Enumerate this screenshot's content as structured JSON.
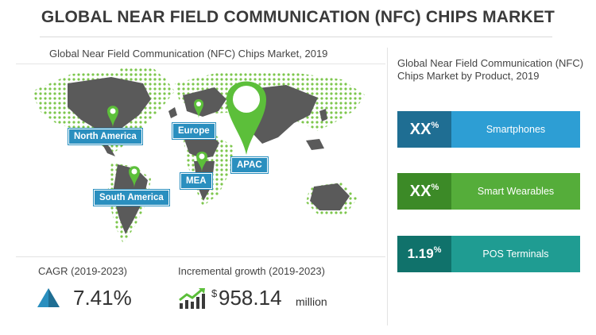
{
  "header": {
    "title": "GLOBAL NEAR FIELD COMMUNICATION (NFC) CHIPS MARKET"
  },
  "map": {
    "title": "Global Near Field Communication (NFC) Chips Market, 2019",
    "regions": {
      "north_america": "North America",
      "europe": "Europe",
      "apac": "APAC",
      "mea": "MEA",
      "south_america": "South America"
    },
    "colors": {
      "land": "#5a5a5a",
      "dots": "#7dc64c",
      "label": "#2a8fbf",
      "pin": "#5cbf3a"
    }
  },
  "products": {
    "title": "Global Near Field Communication (NFC) Chips Market by Product, 2019",
    "items": [
      {
        "value": "XX",
        "unit": "%",
        "label": "Smartphones"
      },
      {
        "value": "XX",
        "unit": "%",
        "label": "Smart Wearables"
      },
      {
        "value": "1.19",
        "unit": "%",
        "label": "POS Terminals"
      }
    ]
  },
  "metrics": {
    "cagr_label": "CAGR (2019-2023)",
    "cagr_value": "7.41%",
    "incremental_label": "Incremental growth (2019-2023)",
    "incremental_currency": "$",
    "incremental_value": "958.14",
    "incremental_unit": "million"
  }
}
